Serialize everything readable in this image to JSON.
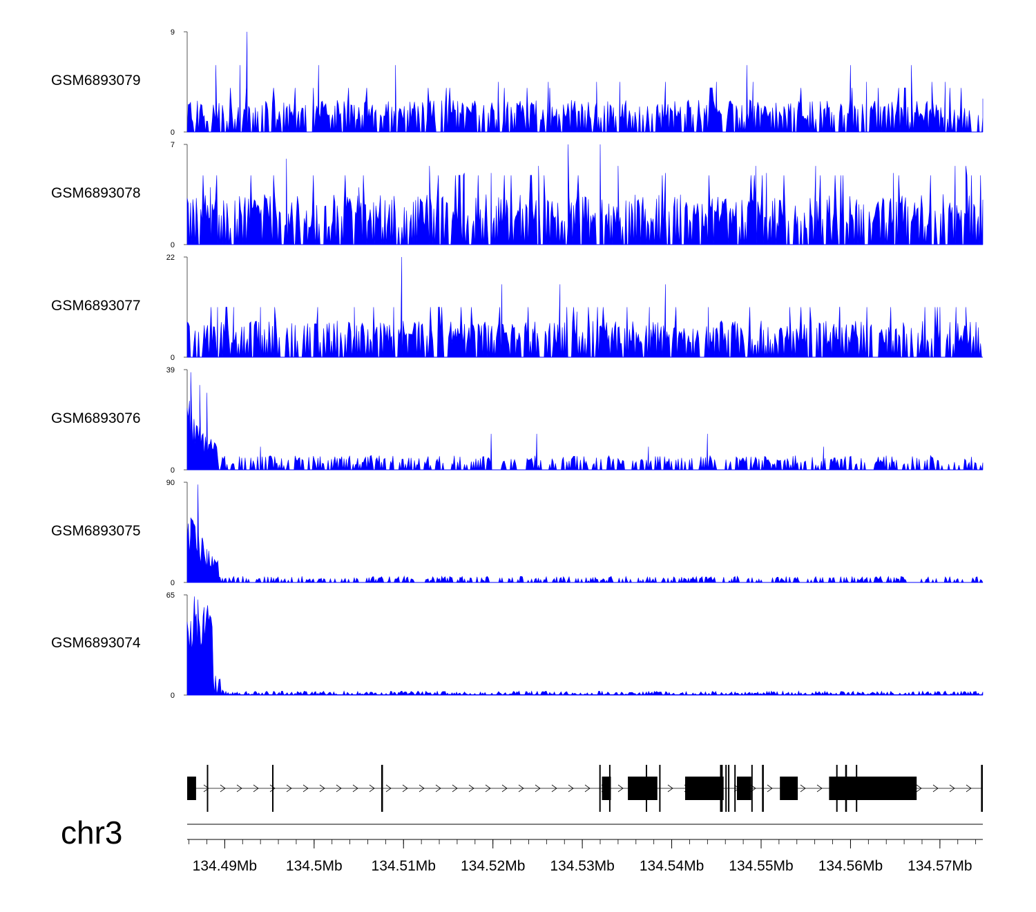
{
  "chart_data": {
    "type": "area",
    "title": "",
    "chromosome": "chr3",
    "x_unit": "Mb",
    "xlim": [
      134.4858,
      134.5748
    ],
    "x_ticks": [
      134.49,
      134.5,
      134.51,
      134.52,
      134.53,
      134.54,
      134.55,
      134.56,
      134.57
    ],
    "x_tick_labels": [
      "134.49Mb",
      "134.5Mb",
      "134.51Mb",
      "134.52Mb",
      "134.53Mb",
      "134.54Mb",
      "134.55Mb",
      "134.56Mb",
      "134.57Mb"
    ],
    "fill_color": "#0000ff",
    "tracks": [
      {
        "name": "GSM6893079",
        "ymin": 0,
        "ymax": 9,
        "y_labels": [
          "0",
          "9"
        ],
        "profile": "uniform",
        "typical": 1.8,
        "peaks": [
          [
            134.4925,
            9
          ],
          [
            134.4917,
            6
          ],
          [
            134.489,
            6
          ],
          [
            134.5005,
            6
          ],
          [
            134.5091,
            6
          ],
          [
            134.5316,
            4.5
          ],
          [
            134.5342,
            4.5
          ],
          [
            134.5484,
            6
          ],
          [
            134.5491,
            4.5
          ],
          [
            134.56,
            6
          ],
          [
            134.5618,
            4.5
          ],
          [
            134.5668,
            6
          ],
          [
            134.5691,
            4.5
          ],
          [
            134.5706,
            4.5
          ],
          [
            134.5206,
            4.5
          ],
          [
            134.5262,
            4.5
          ],
          [
            134.5393,
            4.5
          ],
          [
            134.545,
            4.5
          ],
          [
            134.5748,
            3
          ]
        ]
      },
      {
        "name": "GSM6893078",
        "ymin": 0,
        "ymax": 7,
        "y_labels": [
          "0",
          "7"
        ],
        "profile": "uniform",
        "typical": 2.2,
        "peaks": [
          [
            134.5284,
            7
          ],
          [
            134.532,
            7
          ],
          [
            134.4969,
            6
          ],
          [
            134.5129,
            5.5
          ],
          [
            134.5251,
            5.5
          ],
          [
            134.534,
            5.5
          ],
          [
            134.5393,
            5
          ],
          [
            134.5494,
            5.5
          ],
          [
            134.5506,
            5
          ],
          [
            134.5561,
            5.5
          ],
          [
            134.5648,
            5
          ],
          [
            134.5717,
            5.5
          ],
          [
            134.5729,
            5.5
          ],
          [
            134.5198,
            5
          ],
          [
            134.5168,
            5
          ],
          [
            134.4884,
            4
          ],
          [
            134.505,
            4
          ]
        ]
      },
      {
        "name": "GSM6893077",
        "ymin": 0,
        "ymax": 22,
        "y_labels": [
          "0",
          "22"
        ],
        "profile": "uniform",
        "typical": 5,
        "peaks": [
          [
            134.5098,
            22
          ],
          [
            134.521,
            16
          ],
          [
            134.5275,
            16
          ],
          [
            134.5393,
            16
          ],
          [
            134.4892,
            11
          ],
          [
            134.491,
            11
          ],
          [
            134.494,
            11
          ],
          [
            134.5004,
            11
          ],
          [
            134.5045,
            11
          ],
          [
            134.5089,
            11
          ],
          [
            134.5294,
            10
          ],
          [
            134.5375,
            11
          ],
          [
            134.5441,
            11
          ],
          [
            134.5532,
            11
          ],
          [
            134.5588,
            11
          ],
          [
            134.5645,
            11
          ],
          [
            134.57,
            11
          ],
          [
            134.5718,
            11
          ],
          [
            134.5729,
            11
          ]
        ]
      },
      {
        "name": "GSM6893076",
        "ymin": 0,
        "ymax": 39,
        "y_labels": [
          "0",
          "39"
        ],
        "profile": "decay5",
        "typical": 4,
        "peaks": [
          [
            134.4862,
            38
          ],
          [
            134.4872,
            33
          ],
          [
            134.488,
            30
          ],
          [
            134.5198,
            14
          ],
          [
            134.5249,
            14
          ],
          [
            134.5374,
            9
          ],
          [
            134.544,
            14
          ],
          [
            134.557,
            9
          ],
          [
            134.494,
            9
          ]
        ]
      },
      {
        "name": "GSM6893075",
        "ymin": 0,
        "ymax": 90,
        "y_labels": [
          "0",
          "90"
        ],
        "profile": "decay5",
        "typical": 4,
        "peaks": [
          [
            134.487,
            88
          ],
          [
            134.4862,
            58
          ],
          [
            134.4866,
            52
          ],
          [
            134.4875,
            40
          ],
          [
            134.488,
            30
          ]
        ]
      },
      {
        "name": "GSM6893074",
        "ymin": 0,
        "ymax": 65,
        "y_labels": [
          "0",
          "65"
        ],
        "profile": "block",
        "typical": 2,
        "peaks": [
          [
            134.4866,
            64
          ],
          [
            134.487,
            62
          ],
          [
            134.4877,
            57
          ],
          [
            134.4862,
            48
          ]
        ]
      }
    ],
    "gene_model": {
      "strand": "+",
      "exons": [
        [
          134.4858,
          134.4868
        ],
        [
          134.488,
          134.4881
        ],
        [
          134.4953,
          134.4954
        ],
        [
          134.5075,
          134.5077
        ],
        [
          134.5319,
          134.532
        ],
        [
          134.5322,
          134.5332
        ],
        [
          134.533,
          134.5331
        ],
        [
          134.5351,
          134.5384
        ],
        [
          134.5371,
          134.5372
        ],
        [
          134.5386,
          134.5387
        ],
        [
          134.5415,
          134.5458
        ],
        [
          134.5454,
          134.5457
        ],
        [
          134.546,
          134.5461
        ],
        [
          134.5463,
          134.5464
        ],
        [
          134.547,
          134.5471
        ],
        [
          134.5473,
          134.5489
        ],
        [
          134.5489,
          134.549
        ],
        [
          134.5501,
          134.5503
        ],
        [
          134.5521,
          134.5541
        ],
        [
          134.5576,
          134.5674
        ],
        [
          134.5584,
          134.5585
        ],
        [
          134.5594,
          134.5596
        ],
        [
          134.5606,
          134.5607
        ],
        [
          134.5746,
          134.5748
        ]
      ],
      "intron_start": 134.4858,
      "intron_end": 134.5748
    }
  }
}
